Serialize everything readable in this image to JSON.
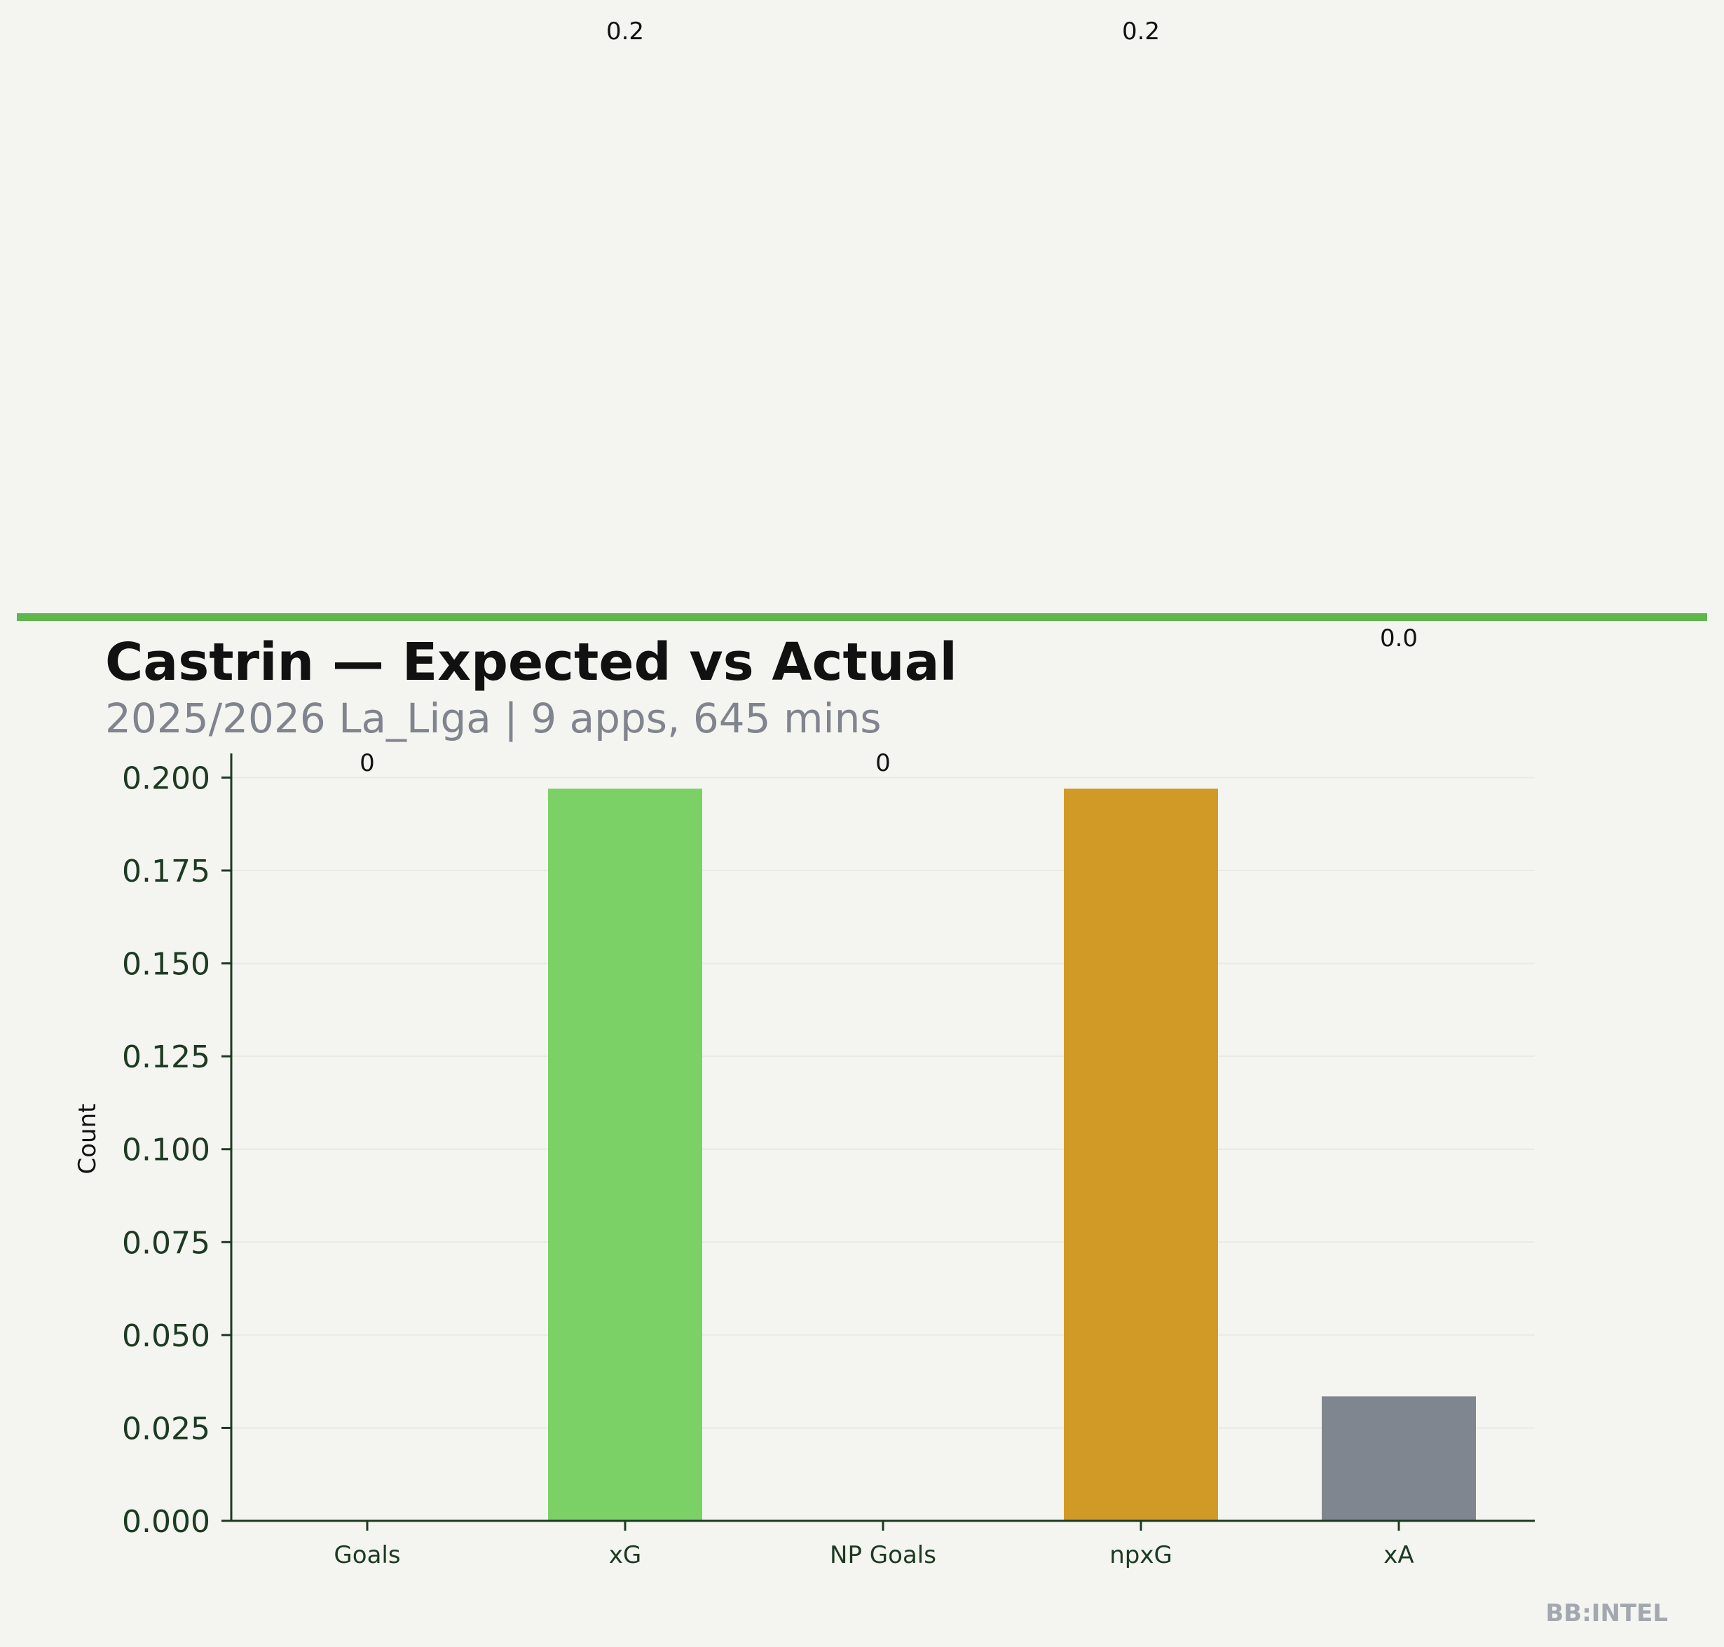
{
  "colors": {
    "background": "#f4f5f0",
    "accent_rule": "#5fb64a",
    "axis": "#1d3a22",
    "grid": "#eaeae4"
  },
  "chart_data": {
    "type": "bar",
    "title": "Castrin — Expected vs Actual",
    "subtitle": "2025/2026 La_Liga | 9 apps, 645 mins",
    "xlabel": "",
    "ylabel": "Count",
    "ylim": [
      0,
      0.2065
    ],
    "yticks": [
      "0.000",
      "0.025",
      "0.050",
      "0.075",
      "0.100",
      "0.125",
      "0.150",
      "0.175",
      "0.200"
    ],
    "ytick_values": [
      0,
      0.025,
      0.05,
      0.075,
      0.1,
      0.125,
      0.15,
      0.175,
      0.2
    ],
    "grid": true,
    "categories": [
      "Goals",
      "xG",
      "NP Goals",
      "npxG",
      "xA"
    ],
    "values": [
      0,
      0.197,
      0,
      0.197,
      0.0335
    ],
    "data_labels": [
      "0",
      "0.2",
      "0",
      "0.2",
      "0.0"
    ],
    "bar_colors": [
      "#7cd166",
      "#7cd166",
      "#d19a26",
      "#d19a26",
      "#80868f"
    ]
  },
  "watermark": "BB:INTEL"
}
